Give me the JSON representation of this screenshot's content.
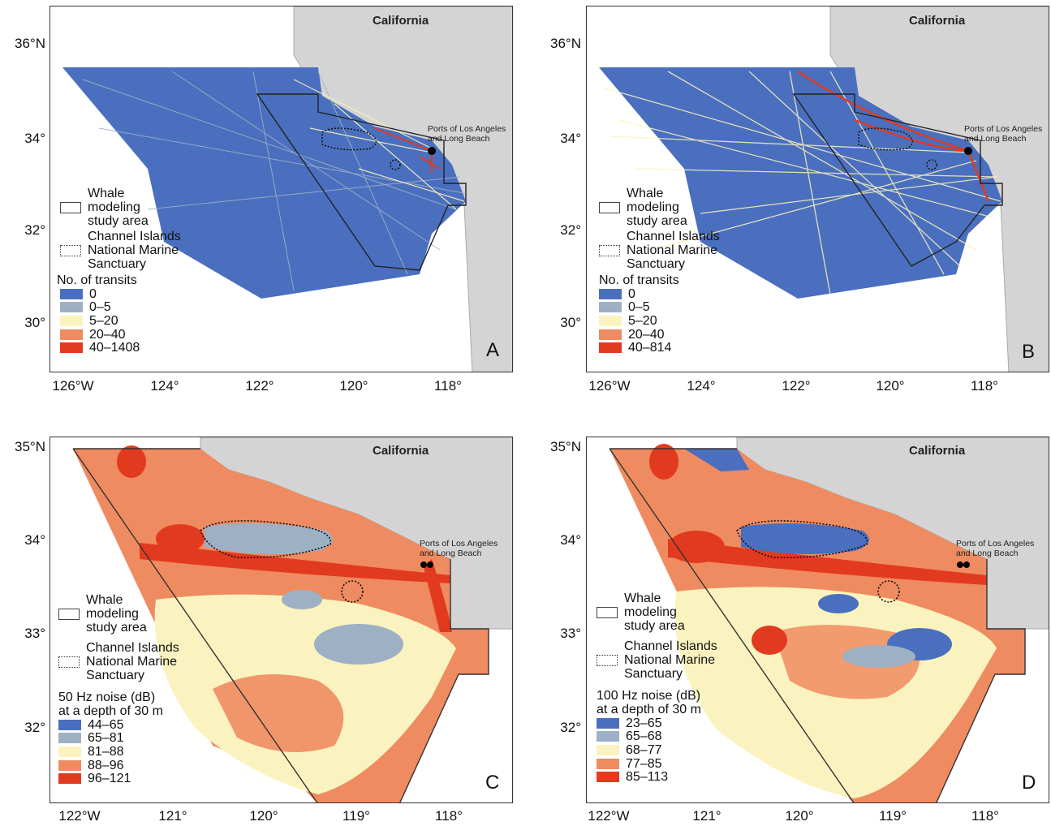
{
  "panels": {
    "a": {
      "letter": "A",
      "state_label": "California",
      "port_label": "Ports of Los Angeles\nand Long Beach",
      "lat_labels": [
        "36°N",
        "34°",
        "32°",
        "30°"
      ],
      "lon_labels": [
        "126°W",
        "124°",
        "122°",
        "120°",
        "118°"
      ],
      "legend": {
        "study_area": "Whale\nmodeling\nstudy area",
        "sanctuary": "Channel Islands\nNational Marine\nSanctuary",
        "title": "No. of transits",
        "items": [
          {
            "label": "0",
            "color": "#4a6fbf"
          },
          {
            "label": "0–5",
            "color": "#9eb0c4"
          },
          {
            "label": "5–20",
            "color": "#fbf3bf"
          },
          {
            "label": "20–40",
            "color": "#ef8b60"
          },
          {
            "label": "40–1408",
            "color": "#e23a1f"
          }
        ]
      }
    },
    "b": {
      "letter": "B",
      "state_label": "California",
      "port_label": "Ports of Los Angeles\nand Long Beach",
      "lat_labels": [
        "36°N",
        "34°",
        "32°",
        "30°"
      ],
      "lon_labels": [
        "126°W",
        "124°",
        "122°",
        "120°",
        "118°"
      ],
      "legend": {
        "study_area": "Whale\nmodeling\nstudy area",
        "sanctuary": "Channel Islands\nNational Marine\nSanctuary",
        "title": "No. of transits",
        "items": [
          {
            "label": "0",
            "color": "#4a6fbf"
          },
          {
            "label": "0–5",
            "color": "#9eb0c4"
          },
          {
            "label": "5–20",
            "color": "#fbf3bf"
          },
          {
            "label": "20–40",
            "color": "#ef8b60"
          },
          {
            "label": "40–814",
            "color": "#e23a1f"
          }
        ]
      }
    },
    "c": {
      "letter": "C",
      "state_label": "California",
      "port_label": "Ports of Los Angeles\nand Long Beach",
      "lat_labels": [
        "35°N",
        "34°",
        "33°",
        "32°"
      ],
      "lon_labels": [
        "122°W",
        "121°",
        "120°",
        "119°",
        "118°"
      ],
      "legend": {
        "study_area": "Whale\nmodeling\nstudy area",
        "sanctuary": "Channel Islands\nNational Marine\nSanctuary",
        "title": "50 Hz noise (dB)\nat a depth of 30 m",
        "items": [
          {
            "label": "44–65",
            "color": "#4a6fbf"
          },
          {
            "label": "65–81",
            "color": "#9eb0c4"
          },
          {
            "label": "81–88",
            "color": "#fbf3bf"
          },
          {
            "label": "88–96",
            "color": "#ef8b60"
          },
          {
            "label": "96–121",
            "color": "#e23a1f"
          }
        ]
      }
    },
    "d": {
      "letter": "D",
      "state_label": "California",
      "port_label": "Ports of Los Angeles\nand Long Beach",
      "lat_labels": [
        "35°N",
        "34°",
        "33°",
        "32°"
      ],
      "lon_labels": [
        "122°W",
        "121°",
        "120°",
        "119°",
        "118°"
      ],
      "legend": {
        "study_area": "Whale\nmodeling\nstudy area",
        "sanctuary": "Channel Islands\nNational Marine\nSanctuary",
        "title": "100 Hz noise (dB)\nat a depth of 30 m",
        "items": [
          {
            "label": "23–65",
            "color": "#4a6fbf"
          },
          {
            "label": "65–68",
            "color": "#9eb0c4"
          },
          {
            "label": "68–77",
            "color": "#fbf3bf"
          },
          {
            "label": "77–85",
            "color": "#ef8b60"
          },
          {
            "label": "85–113",
            "color": "#e23a1f"
          }
        ]
      }
    }
  }
}
